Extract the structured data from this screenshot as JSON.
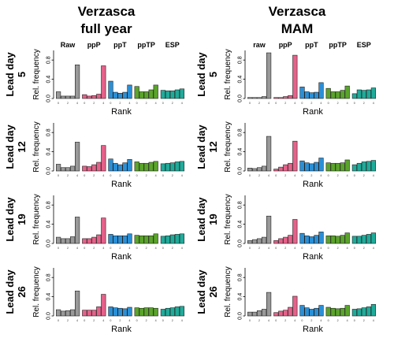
{
  "columns": [
    {
      "title_line1": "Verzasca",
      "title_line2": "full year",
      "method_labels": [
        "Raw",
        "ppP",
        "ppT",
        "ppTP",
        "ESP"
      ]
    },
    {
      "title_line1": "Verzasca",
      "title_line2": "MAM",
      "method_labels": [
        "raw",
        "ppP",
        "ppT",
        "ppTP",
        "ESP"
      ]
    }
  ],
  "lead_day_label": "Lead day",
  "lead_days": [
    "5",
    "12",
    "19",
    "26"
  ],
  "ylabel": "Rel. frequency",
  "xlabel": "Rank",
  "y_ticks": [
    "0.0",
    "0.4",
    "0.8"
  ],
  "rank_ticks": [
    "0",
    "2",
    "4"
  ],
  "colors": {
    "Raw": "#999999",
    "ppP": "#e5628a",
    "ppT": "#2b8fd6",
    "ppTP": "#5aa42b",
    "ESP": "#1fab9a"
  },
  "chart_data": [
    {
      "type": "bar",
      "title": "Verzasca full year",
      "ylim": [
        0,
        1
      ],
      "categories": [
        0,
        1,
        2,
        3,
        4,
        5
      ],
      "panels": [
        {
          "lead_day": "5",
          "series": [
            {
              "name": "Raw",
              "values": [
                0.14,
                0.05,
                0.05,
                0.05,
                0.7
              ]
            },
            {
              "name": "ppP",
              "values": [
                0.08,
                0.05,
                0.06,
                0.09,
                0.68
              ]
            },
            {
              "name": "ppT",
              "values": [
                0.36,
                0.13,
                0.11,
                0.13,
                0.28
              ]
            },
            {
              "name": "ppTP",
              "values": [
                0.25,
                0.14,
                0.14,
                0.18,
                0.28
              ]
            },
            {
              "name": "ESP",
              "values": [
                0.17,
                0.16,
                0.16,
                0.18,
                0.2
              ]
            }
          ]
        },
        {
          "lead_day": "12",
          "series": [
            {
              "name": "Raw",
              "values": [
                0.14,
                0.07,
                0.07,
                0.1,
                0.6
              ]
            },
            {
              "name": "ppP",
              "values": [
                0.1,
                0.09,
                0.13,
                0.18,
                0.53
              ]
            },
            {
              "name": "ppT",
              "values": [
                0.25,
                0.16,
                0.13,
                0.17,
                0.24
              ]
            },
            {
              "name": "ppTP",
              "values": [
                0.19,
                0.16,
                0.16,
                0.18,
                0.2
              ]
            },
            {
              "name": "ESP",
              "values": [
                0.15,
                0.16,
                0.17,
                0.19,
                0.2
              ]
            }
          ]
        },
        {
          "lead_day": "19",
          "series": [
            {
              "name": "Raw",
              "values": [
                0.13,
                0.1,
                0.1,
                0.14,
                0.55
              ]
            },
            {
              "name": "ppP",
              "values": [
                0.1,
                0.1,
                0.13,
                0.18,
                0.53
              ]
            },
            {
              "name": "ppT",
              "values": [
                0.19,
                0.16,
                0.16,
                0.16,
                0.2
              ]
            },
            {
              "name": "ppTP",
              "values": [
                0.17,
                0.16,
                0.16,
                0.16,
                0.2
              ]
            },
            {
              "name": "ESP",
              "values": [
                0.15,
                0.16,
                0.18,
                0.19,
                0.2
              ]
            }
          ]
        },
        {
          "lead_day": "26",
          "series": [
            {
              "name": "Raw",
              "values": [
                0.13,
                0.1,
                0.11,
                0.13,
                0.52
              ]
            },
            {
              "name": "ppP",
              "values": [
                0.12,
                0.12,
                0.12,
                0.19,
                0.45
              ]
            },
            {
              "name": "ppT",
              "values": [
                0.19,
                0.17,
                0.16,
                0.15,
                0.18
              ]
            },
            {
              "name": "ppTP",
              "values": [
                0.17,
                0.16,
                0.17,
                0.17,
                0.16
              ]
            },
            {
              "name": "ESP",
              "values": [
                0.14,
                0.16,
                0.17,
                0.19,
                0.2
              ]
            }
          ]
        }
      ]
    },
    {
      "type": "bar",
      "title": "Verzasca MAM",
      "ylim": [
        0,
        1
      ],
      "categories": [
        0,
        1,
        2,
        3,
        4,
        5
      ],
      "panels": [
        {
          "lead_day": "5",
          "series": [
            {
              "name": "raw",
              "values": [
                0.02,
                0.02,
                0.02,
                0.04,
                0.95
              ]
            },
            {
              "name": "ppP",
              "values": [
                0.02,
                0.02,
                0.04,
                0.06,
                0.9
              ]
            },
            {
              "name": "ppT",
              "values": [
                0.24,
                0.14,
                0.12,
                0.13,
                0.33
              ]
            },
            {
              "name": "ppTP",
              "values": [
                0.21,
                0.14,
                0.14,
                0.17,
                0.26
              ]
            },
            {
              "name": "ESP",
              "values": [
                0.1,
                0.18,
                0.17,
                0.18,
                0.22
              ]
            }
          ]
        },
        {
          "lead_day": "12",
          "series": [
            {
              "name": "raw",
              "values": [
                0.06,
                0.05,
                0.07,
                0.1,
                0.72
              ]
            },
            {
              "name": "ppP",
              "values": [
                0.04,
                0.08,
                0.13,
                0.16,
                0.62
              ]
            },
            {
              "name": "ppT",
              "values": [
                0.21,
                0.17,
                0.15,
                0.18,
                0.27
              ]
            },
            {
              "name": "ppTP",
              "values": [
                0.17,
                0.16,
                0.16,
                0.17,
                0.23
              ]
            },
            {
              "name": "ESP",
              "values": [
                0.13,
                0.16,
                0.19,
                0.2,
                0.22
              ]
            }
          ]
        },
        {
          "lead_day": "19",
          "series": [
            {
              "name": "raw",
              "values": [
                0.06,
                0.08,
                0.1,
                0.13,
                0.57
              ]
            },
            {
              "name": "ppP",
              "values": [
                0.06,
                0.1,
                0.13,
                0.17,
                0.5
              ]
            },
            {
              "name": "ppT",
              "values": [
                0.21,
                0.16,
                0.14,
                0.17,
                0.24
              ]
            },
            {
              "name": "ppTP",
              "values": [
                0.16,
                0.16,
                0.15,
                0.17,
                0.22
              ]
            },
            {
              "name": "ESP",
              "values": [
                0.15,
                0.15,
                0.17,
                0.19,
                0.22
              ]
            }
          ]
        },
        {
          "lead_day": "26",
          "series": [
            {
              "name": "raw",
              "values": [
                0.08,
                0.08,
                0.11,
                0.14,
                0.49
              ]
            },
            {
              "name": "ppP",
              "values": [
                0.07,
                0.1,
                0.12,
                0.18,
                0.41
              ]
            },
            {
              "name": "ppT",
              "values": [
                0.22,
                0.17,
                0.14,
                0.16,
                0.22
              ]
            },
            {
              "name": "ppTP",
              "values": [
                0.18,
                0.16,
                0.15,
                0.16,
                0.22
              ]
            },
            {
              "name": "ESP",
              "values": [
                0.14,
                0.15,
                0.17,
                0.19,
                0.24
              ]
            }
          ]
        }
      ]
    }
  ]
}
